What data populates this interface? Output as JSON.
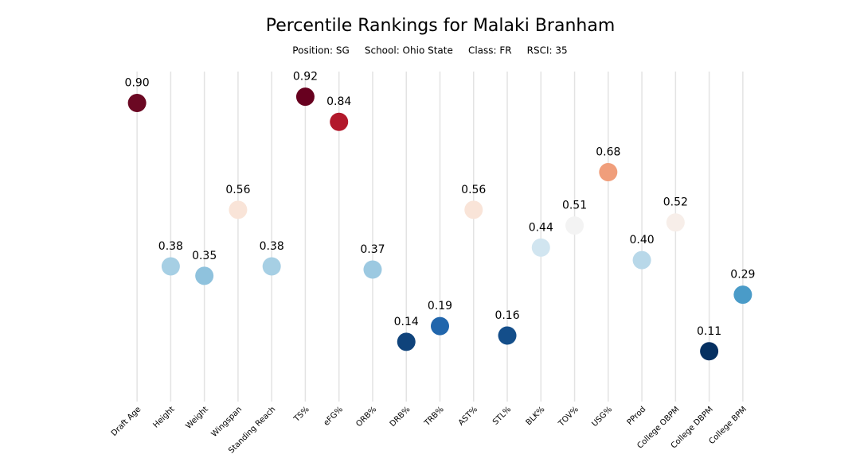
{
  "chart_data": {
    "type": "dot",
    "title": "Percentile Rankings for Malaki Branham",
    "subtitle": "Position: SG     School: Ohio State     Class: FR     RSCI: 35",
    "categories": [
      "Draft Age",
      "Height",
      "Weight",
      "Wingspan",
      "Standing Reach",
      "TS%",
      "eFG%",
      "ORB%",
      "DRB%",
      "TRB%",
      "AST%",
      "STL%",
      "BLK%",
      "TOV%",
      "USG%",
      "PProd",
      "College OBPM",
      "College DBPM",
      "College BPM"
    ],
    "values": [
      0.9,
      0.38,
      0.35,
      0.56,
      0.38,
      0.92,
      0.84,
      0.37,
      0.14,
      0.19,
      0.56,
      0.16,
      0.44,
      0.51,
      0.68,
      0.4,
      0.52,
      0.11,
      0.29
    ],
    "value_labels": [
      "0.90",
      "0.38",
      "0.35",
      "0.56",
      "0.38",
      "0.92",
      "0.84",
      "0.37",
      "0.14",
      "0.19",
      "0.56",
      "0.16",
      "0.44",
      "0.51",
      "0.68",
      "0.40",
      "0.52",
      "0.11",
      "0.29"
    ],
    "colors": [
      "#6b0823",
      "#a6cfe4",
      "#8fc2dd",
      "#f9e4d8",
      "#a6cfe4",
      "#67001f",
      "#b2182b",
      "#9cc9e1",
      "#0f437b",
      "#2166ac",
      "#f9e4d8",
      "#144e8a",
      "#d1e5f0",
      "#f3f3f3",
      "#f09e7b",
      "#b8d8e9",
      "#f7eee9",
      "#053061",
      "#4a9bc8"
    ],
    "ylim": [
      -0.05,
      1.0
    ]
  }
}
